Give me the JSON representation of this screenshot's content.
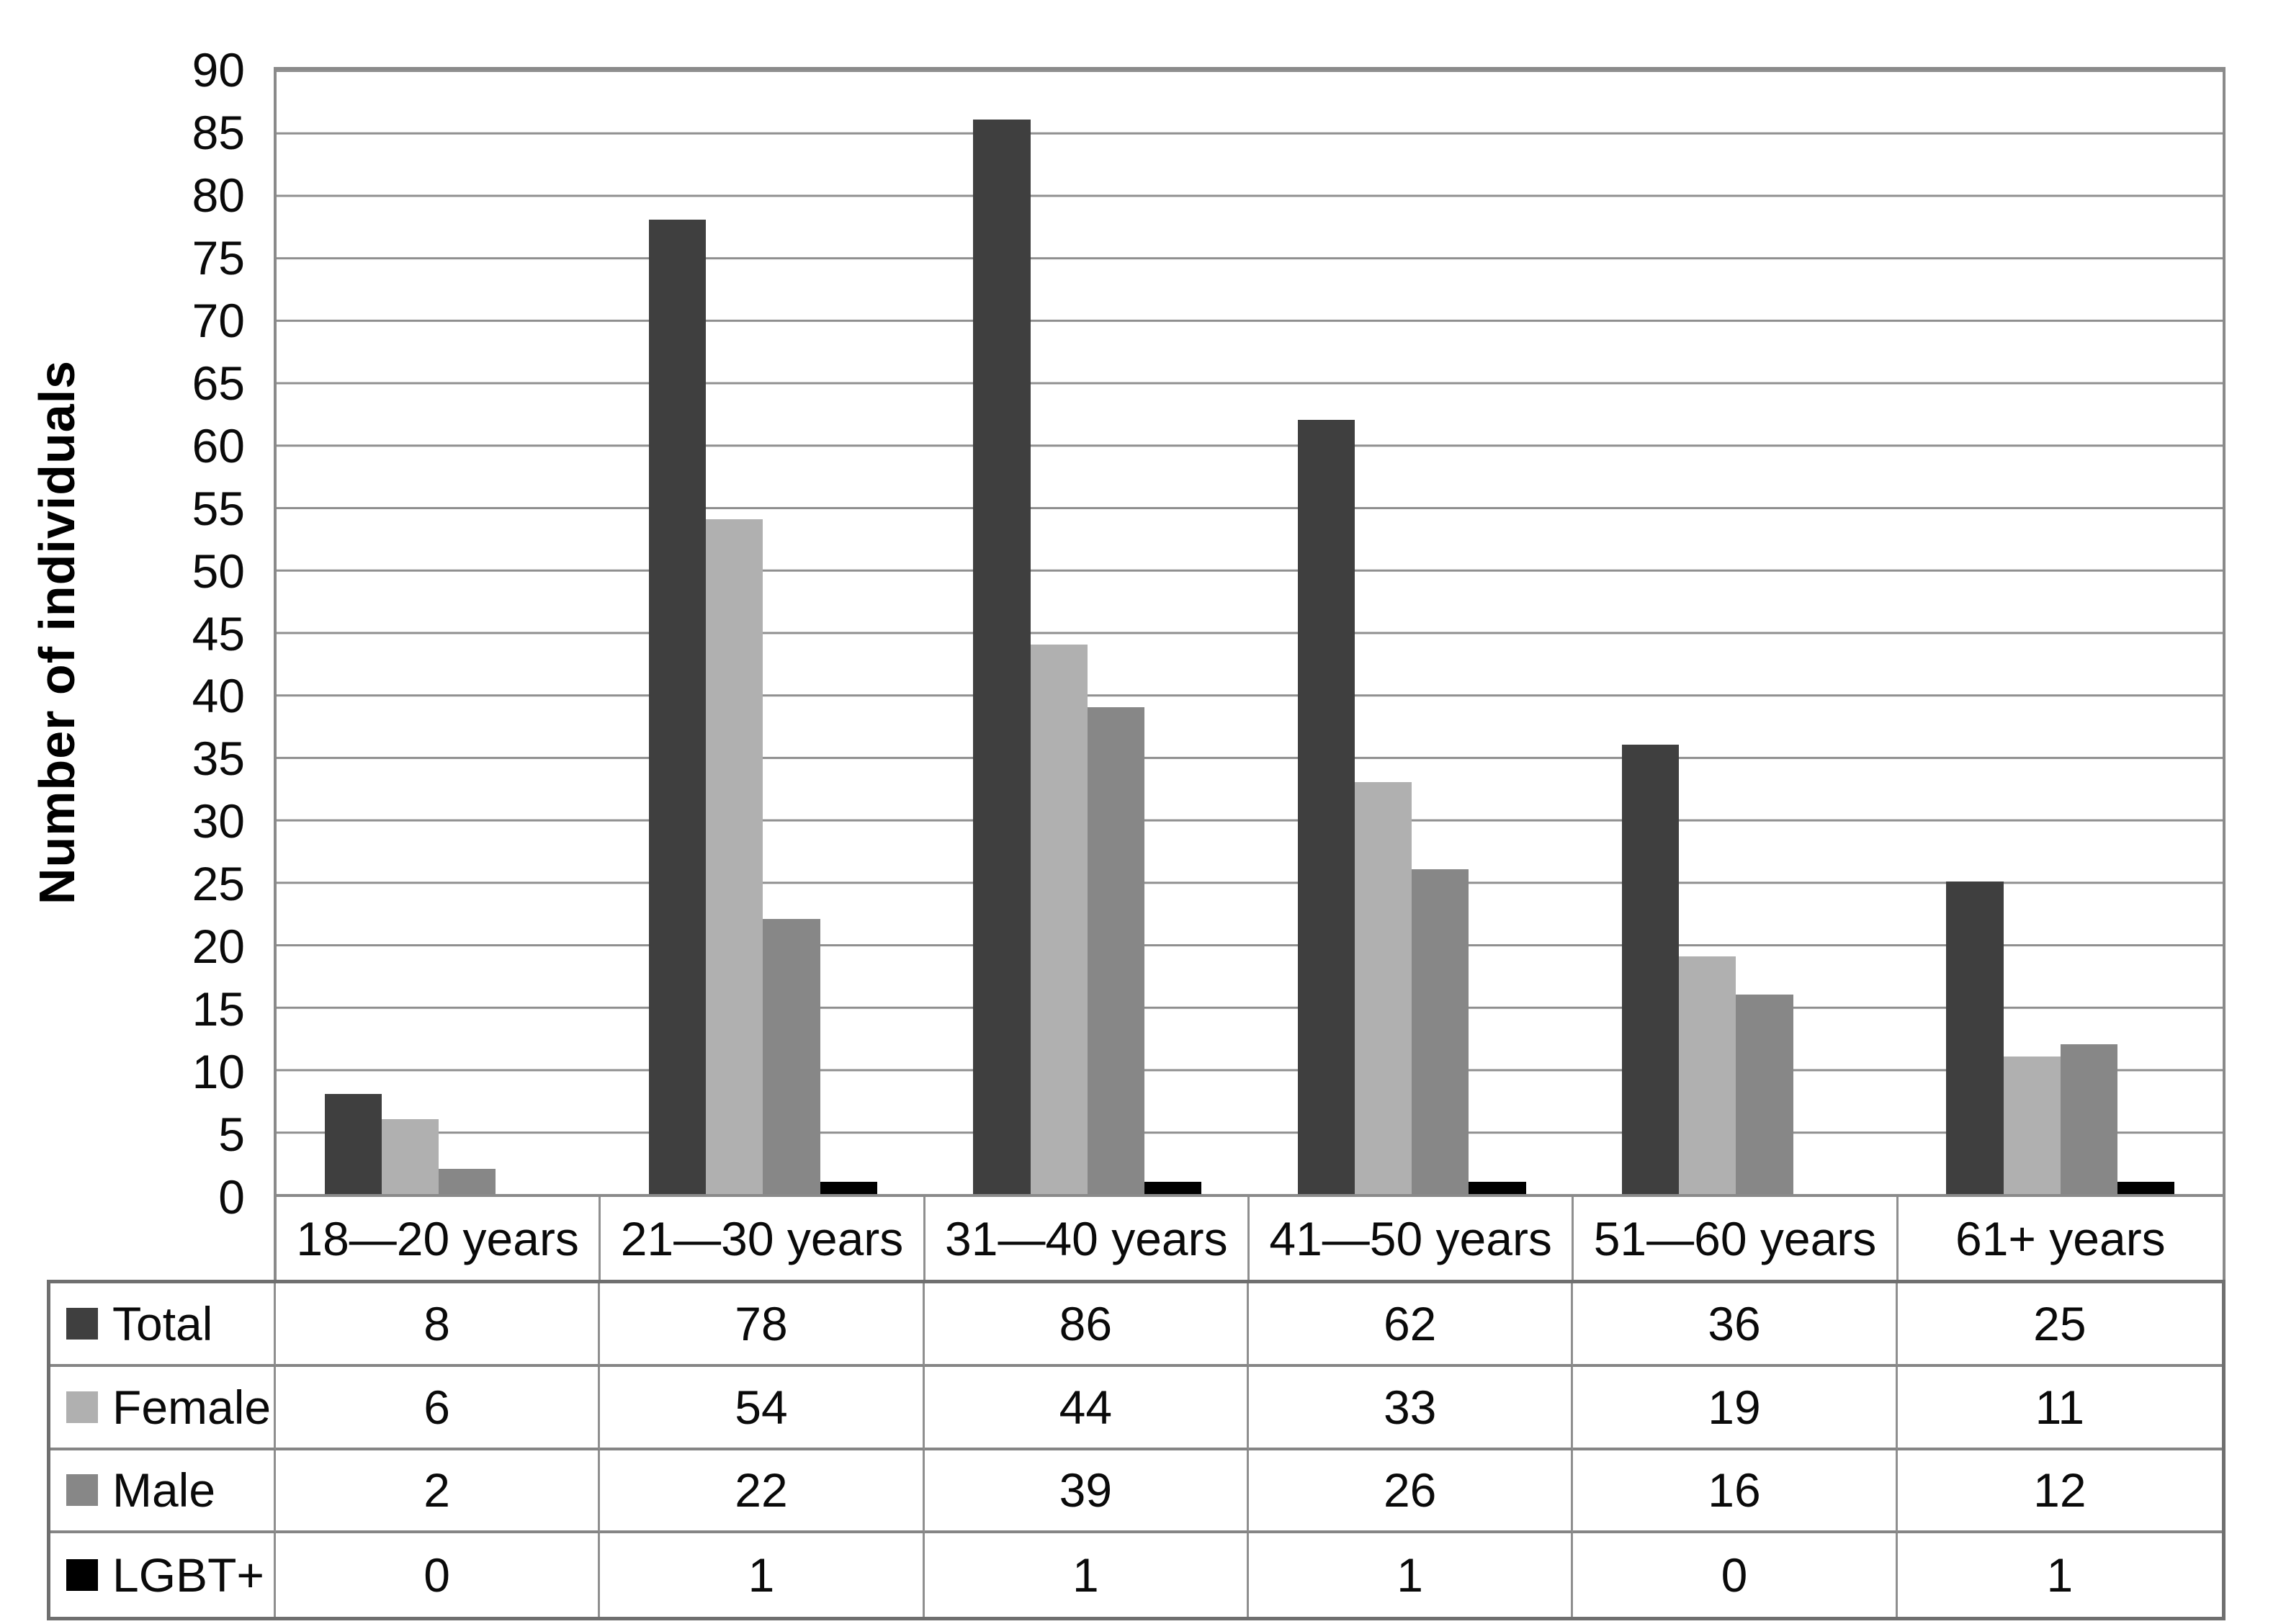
{
  "chart_data": {
    "type": "bar",
    "title": "",
    "xlabel": "",
    "ylabel": "Number of individuals",
    "ylim": [
      0,
      90
    ],
    "ytick_step": 5,
    "grid": true,
    "legend_position": "table-rows-left",
    "categories": [
      "18—20 years",
      "21—30 years",
      "31—40 years",
      "41—50 years",
      "51—60 years",
      "61+ years"
    ],
    "series": [
      {
        "name": "Total",
        "color": "#3f3f3f",
        "values": [
          8,
          78,
          86,
          62,
          36,
          25
        ]
      },
      {
        "name": "Female",
        "color": "#b0b0b0",
        "values": [
          6,
          54,
          44,
          33,
          19,
          11
        ]
      },
      {
        "name": "Male",
        "color": "#878787",
        "values": [
          2,
          22,
          39,
          26,
          16,
          12
        ]
      },
      {
        "name": "LGBT+",
        "color": "#000000",
        "values": [
          0,
          1,
          1,
          1,
          0,
          1
        ]
      }
    ]
  },
  "colors": {
    "gridline": "#8f8f8f",
    "plot_border": "#8a8a8a",
    "table_inner_border": "#8f8f8f",
    "table_outer_border": "#6f6f6f",
    "text": "#0a0a0a",
    "background": "#ffffff"
  }
}
